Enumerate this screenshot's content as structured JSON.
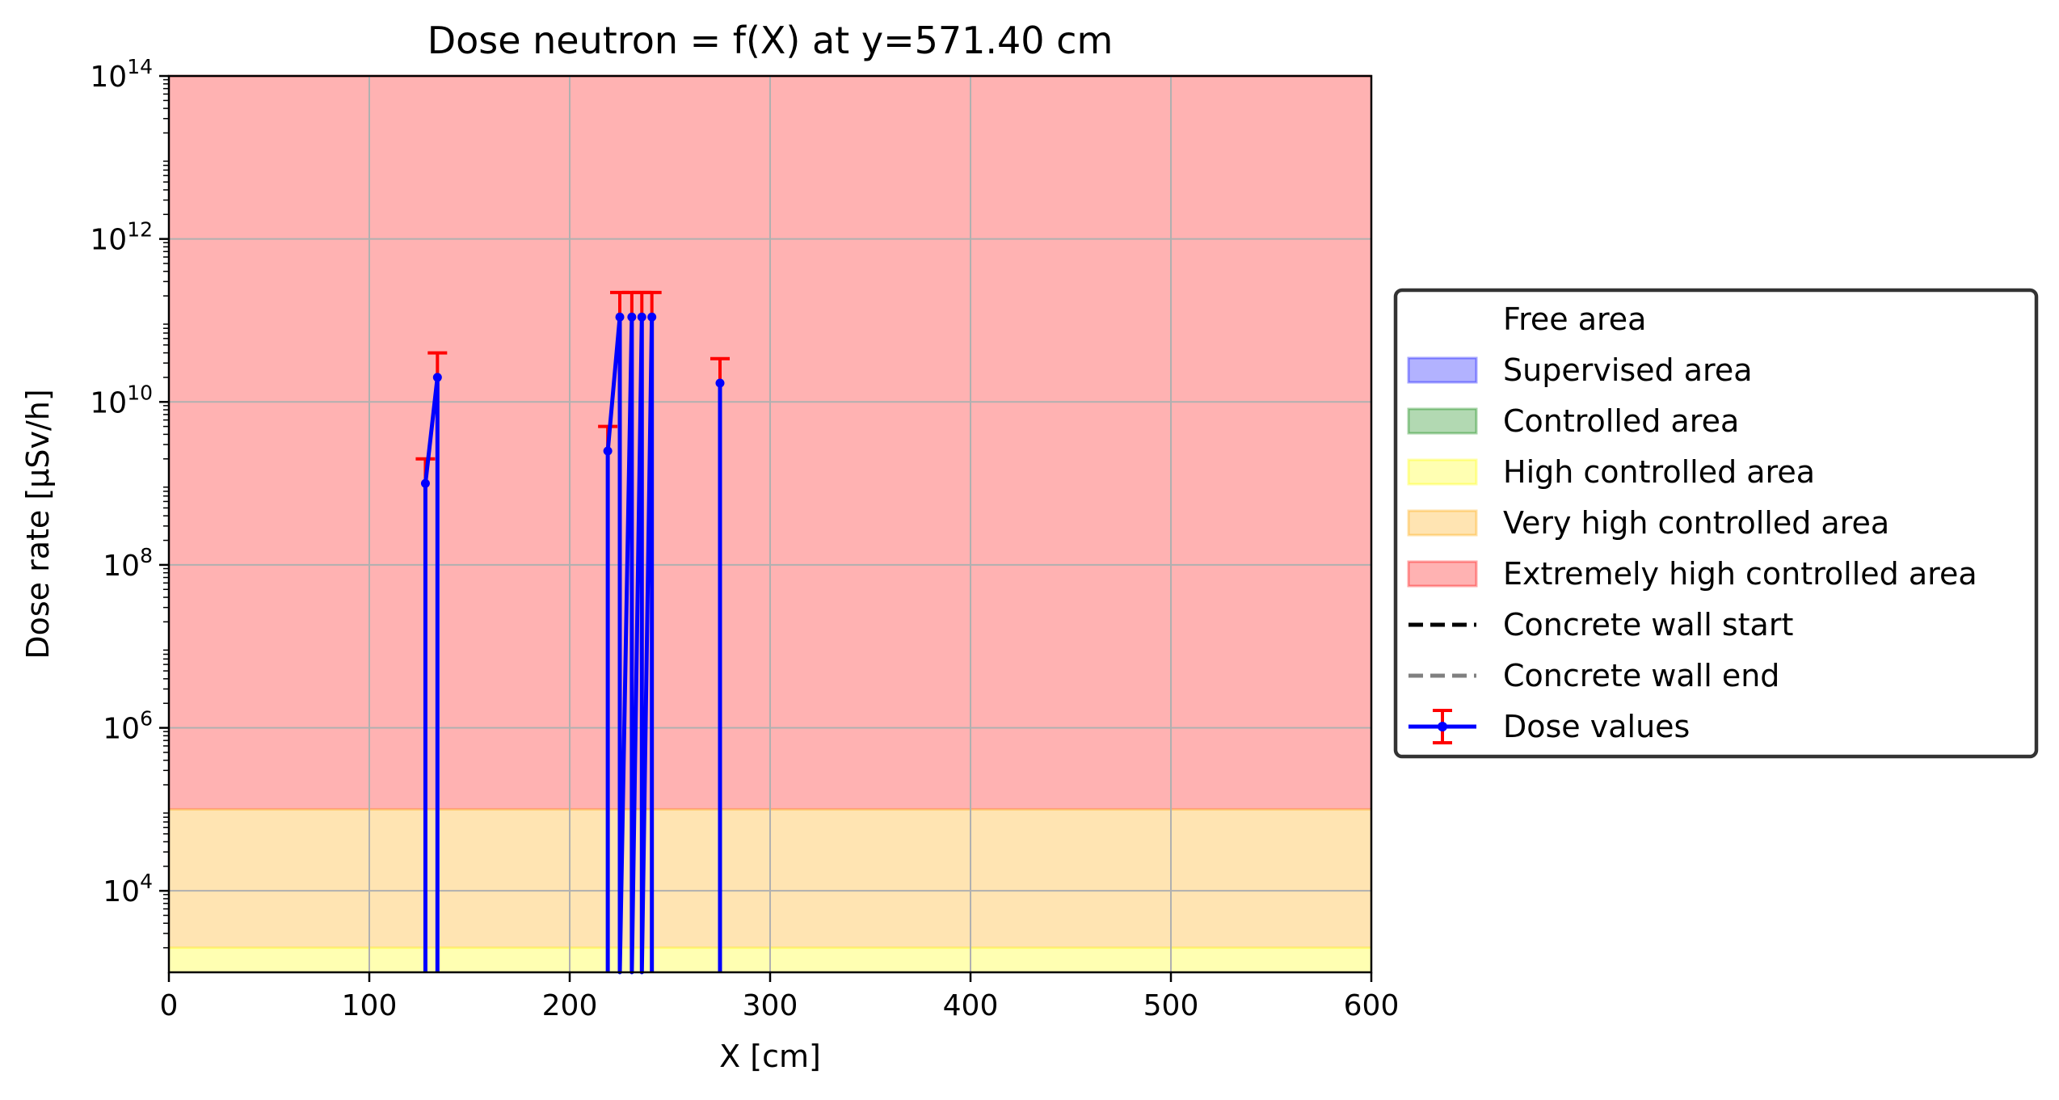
{
  "chart_data": {
    "type": "line",
    "title": "Dose neutron = f(X) at y=571.40 cm",
    "xlabel": "X [cm]",
    "ylabel": "Dose rate [µSv/h]",
    "xlim": [
      0,
      600
    ],
    "ylim": [
      1000,
      100000000000000
    ],
    "yscale": "log",
    "grid": true,
    "x_ticks": [
      0,
      100,
      200,
      300,
      400,
      500,
      600
    ],
    "x_tick_labels": [
      "0",
      "100",
      "200",
      "300",
      "400",
      "500",
      "600"
    ],
    "y_ticks": [
      {
        "value": 10000,
        "base": "10",
        "exp": "4"
      },
      {
        "value": 1000000,
        "base": "10",
        "exp": "6"
      },
      {
        "value": 100000000,
        "base": "10",
        "exp": "8"
      },
      {
        "value": 10000000000,
        "base": "10",
        "exp": "10"
      },
      {
        "value": 1000000000000,
        "base": "10",
        "exp": "12"
      },
      {
        "value": 100000000000000,
        "base": "10",
        "exp": "14"
      }
    ],
    "zones": [
      {
        "name": "Free area",
        "lower": null,
        "upper": null,
        "color": "#ffffff"
      },
      {
        "name": "Supervised area",
        "lower": null,
        "upper": null,
        "color": "#0000ff"
      },
      {
        "name": "Controlled area",
        "lower": null,
        "upper": null,
        "color": "#008000"
      },
      {
        "name": "High controlled area",
        "lower": 1000,
        "upper": 2000,
        "color": "#ffff00"
      },
      {
        "name": "Very high controlled area",
        "lower": 2000,
        "upper": 100000,
        "color": "#ffa500"
      },
      {
        "name": "Extremely high controlled area",
        "lower": 100000,
        "upper": 100000000000000,
        "color": "#ff0000"
      }
    ],
    "series": [
      {
        "name": "Dose values",
        "color": "#0000ff",
        "error_color": "#ff0000",
        "segments": [
          {
            "x": [
              128,
              128,
              134,
              134
            ],
            "y": [
              1000,
              1000000000,
              20000000000,
              1000
            ],
            "yerr_upper": [
              null,
              2000000000,
              40000000000,
              null
            ]
          },
          {
            "x": [
              219,
              219,
              225,
              225,
              231,
              231,
              236,
              236,
              241,
              241
            ],
            "y": [
              1000,
              2500000000,
              110000000000,
              1000,
              110000000000,
              1000,
              110000000000,
              1000,
              110000000000,
              1000
            ],
            "yerr_upper": [
              null,
              5000000000,
              220000000000,
              null,
              220000000000,
              null,
              220000000000,
              null,
              220000000000,
              null
            ]
          },
          {
            "x": [
              275,
              275,
              275
            ],
            "y": [
              1000,
              17000000000,
              1000
            ],
            "yerr_upper": [
              null,
              34000000000,
              null
            ]
          }
        ]
      }
    ],
    "legend": {
      "placement": "center-right outside",
      "entries": [
        {
          "label": "Free area",
          "kind": "patch",
          "color": "#ffffff"
        },
        {
          "label": "Supervised area",
          "kind": "patch",
          "color": "#0000ff"
        },
        {
          "label": "Controlled area",
          "kind": "patch",
          "color": "#008000"
        },
        {
          "label": "High controlled area",
          "kind": "patch",
          "color": "#ffff00"
        },
        {
          "label": "Very high controlled area",
          "kind": "patch",
          "color": "#ffa500"
        },
        {
          "label": "Extremely high controlled area",
          "kind": "patch",
          "color": "#ff0000"
        },
        {
          "label": "Concrete wall start",
          "kind": "dash",
          "color": "#000000"
        },
        {
          "label": "Concrete wall end",
          "kind": "dash",
          "color": "#808080"
        },
        {
          "label": "Dose values",
          "kind": "errorbar",
          "color": "#0000ff"
        }
      ]
    }
  }
}
